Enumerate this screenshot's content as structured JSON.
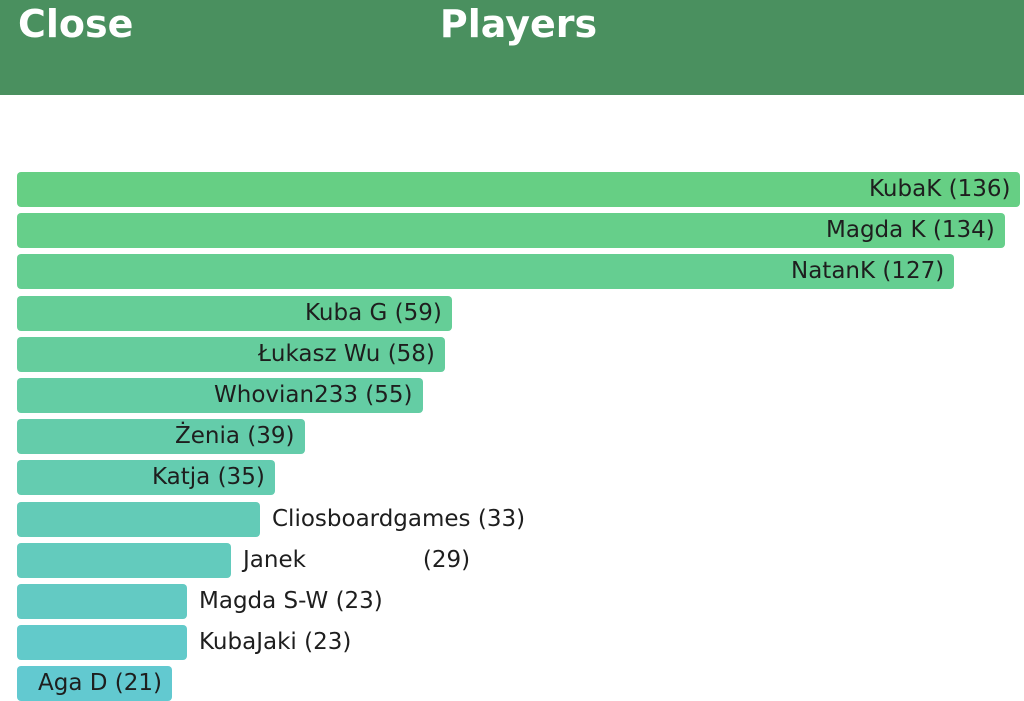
{
  "header": {
    "close_label": "Close",
    "title": "Players"
  },
  "colors": {
    "header_bg": "#4a905f",
    "bar_start": "#66cf84",
    "bar_end": "#62c9d0"
  },
  "chart_data": {
    "type": "bar",
    "orientation": "horizontal",
    "categories": [
      "KubaK",
      "Magda K",
      "NatanK",
      "Kuba G",
      "Łukasz Wu",
      "Whovian233",
      "Żenia",
      "Katja",
      "Cliosboardgames",
      "Janek",
      "Magda S-W",
      "KubaJaki",
      "Aga D"
    ],
    "values": [
      136,
      134,
      127,
      59,
      58,
      55,
      39,
      35,
      33,
      29,
      23,
      23,
      21
    ],
    "labels": [
      "KubaK (136)",
      "Magda K (134)",
      "NatanK (127)",
      "Kuba G (59)",
      "Łukasz Wu (58)",
      "Whovian233 (55)",
      "Żenia (39)",
      "Katja (35)",
      "Cliosboardgames (33)",
      "Janek                (29)",
      "Magda S-W (23)",
      "KubaJaki (23)",
      "Aga D (21)"
    ],
    "xlim": [
      0,
      136
    ],
    "grid": false,
    "legend": "none"
  }
}
